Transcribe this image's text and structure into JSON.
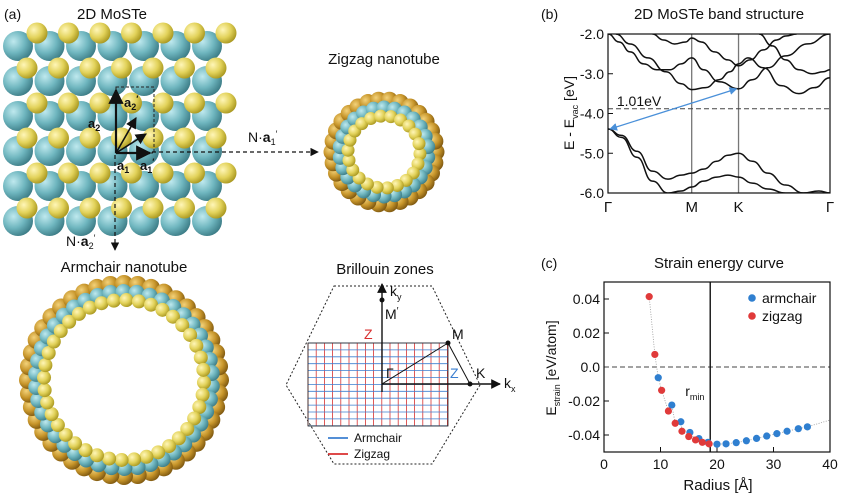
{
  "panels": {
    "a": {
      "label": "(a)",
      "sheet_title": "2D MoSTe",
      "zigzag_title": "Zigzag nanotube",
      "armchair_title": "Armchair nanotube",
      "vec_a1": "a",
      "vec_a1_sub": "1",
      "vec_a2": "a",
      "vec_a2_sub": "2",
      "vec_a1p": "a",
      "vec_a1p_sub": "1",
      "vec_a2p": "a",
      "vec_a2p_sub": "2",
      "prime": "′",
      "n_a1_prefix": "N·",
      "n_a1_vec": "a",
      "n_a1_sub": "1",
      "n_a2_prefix": "N·",
      "n_a2_vec": "a",
      "n_a2_sub": "2"
    },
    "bz": {
      "title": "Brillouin zones",
      "ky": "k",
      "ky_sub": "y",
      "kx": "k",
      "kx_sub": "x",
      "point_M_top": "M",
      "point_M_prime": "′",
      "point_M": "M",
      "point_Z": "Z",
      "point_Gamma": "Γ",
      "point_Z2": "Z",
      "point_K": "K",
      "legend_armchair": "Armchair",
      "legend_zigzag": "Zigzag",
      "colors": {
        "armchair": "#3b7fd1",
        "zigzag": "#d93030"
      }
    },
    "b": {
      "label": "(b)"
    },
    "c": {
      "label": "(c)"
    }
  },
  "chart_data": [
    {
      "type": "line",
      "title": "2D MoSTe band structure",
      "ylabel_main": "E - E",
      "ylabel_sub": "vac",
      "ylabel_unit": " [eV]",
      "ylim": [
        -6.0,
        -2.0
      ],
      "yticks": [
        -6.0,
        -5.0,
        -4.0,
        -3.0,
        -2.0
      ],
      "ytick_labels": [
        "-6.0",
        "-5.0",
        "-4.0",
        "-3.0",
        "-2.0"
      ],
      "kpath": [
        {
          "label": "Γ",
          "pos": 0.0
        },
        {
          "label": "M",
          "pos": 0.377
        },
        {
          "label": "K",
          "pos": 0.588
        },
        {
          "label": "Γ",
          "pos": 1.0
        }
      ],
      "fermi_level": -3.88,
      "gap_annotation": {
        "text": "1.01eV",
        "from": [
          0.0,
          -4.39
        ],
        "to": [
          0.588,
          -3.38
        ],
        "color": "#4a90d9"
      },
      "bands": [
        {
          "x": [
            0.0,
            0.06,
            0.13,
            0.2,
            0.27,
            0.33,
            0.377,
            0.43,
            0.49,
            0.54,
            0.588,
            0.65,
            0.72,
            0.8,
            0.88,
            0.95,
            1.0
          ],
          "y": [
            -4.39,
            -4.55,
            -4.95,
            -5.45,
            -5.65,
            -5.55,
            -5.5,
            -5.4,
            -5.2,
            -5.05,
            -5.0,
            -5.2,
            -5.5,
            -5.8,
            -6.0,
            -6.0,
            -6.0
          ]
        },
        {
          "x": [
            0.0,
            0.06,
            0.13,
            0.2,
            0.27,
            0.33,
            0.377,
            0.43,
            0.49,
            0.54,
            0.588,
            0.65,
            0.72,
            0.8,
            0.88,
            0.95,
            1.0
          ],
          "y": [
            -4.39,
            -4.6,
            -5.1,
            -5.7,
            -6.0,
            -5.95,
            -5.85,
            -5.7,
            -5.6,
            -5.55,
            -5.6,
            -5.75,
            -5.9,
            -6.0,
            -6.0,
            -5.95,
            -6.0
          ]
        },
        {
          "x": [
            0.0,
            0.05,
            0.1,
            0.16,
            0.22,
            0.28,
            0.33,
            0.377,
            0.43,
            0.5,
            0.588,
            0.65,
            0.72,
            0.8,
            0.9,
            1.0
          ],
          "y": [
            -2.0,
            -2.2,
            -2.45,
            -2.75,
            -2.9,
            -2.9,
            -2.75,
            -2.6,
            -2.9,
            -3.2,
            -3.38,
            -3.15,
            -2.85,
            -2.55,
            -2.25,
            -2.0
          ]
        },
        {
          "x": [
            0.035,
            0.1,
            0.18,
            0.26,
            0.33,
            0.377,
            0.44,
            0.5,
            0.55,
            0.588,
            0.63,
            0.7,
            0.78,
            0.86,
            0.93,
            1.0
          ],
          "y": [
            -2.0,
            -2.25,
            -2.6,
            -2.95,
            -3.25,
            -3.4,
            -3.35,
            -3.15,
            -2.95,
            -2.75,
            -2.6,
            -2.85,
            -3.3,
            -3.5,
            -3.35,
            -3.1
          ]
        },
        {
          "x": [
            0.2,
            0.25,
            0.3,
            0.35,
            0.377,
            0.42,
            0.48,
            0.54,
            0.588,
            0.64,
            0.7,
            0.76,
            0.8,
            0.85
          ],
          "y": [
            -2.0,
            -2.15,
            -2.25,
            -2.2,
            -2.1,
            -2.2,
            -2.45,
            -2.65,
            -2.8,
            -2.65,
            -2.4,
            -2.15,
            -2.05,
            -2.0
          ]
        },
        {
          "x": [
            0.68,
            0.74,
            0.8,
            0.86,
            0.92,
            0.97,
            1.0
          ],
          "y": [
            -2.0,
            -2.3,
            -2.65,
            -2.9,
            -3.0,
            -2.95,
            -2.9
          ]
        }
      ]
    },
    {
      "type": "scatter",
      "title": "Strain energy curve",
      "xlabel": "Radius [Å]",
      "ylabel_main": "E",
      "ylabel_sub": "strain",
      "ylabel_unit": " [eV/atom]",
      "xlim": [
        0,
        40
      ],
      "ylim": [
        -0.05,
        0.05
      ],
      "xticks": [
        0,
        10,
        20,
        30,
        40
      ],
      "xtick_labels": [
        "0",
        "10",
        "20",
        "30",
        "40"
      ],
      "yticks": [
        -0.04,
        -0.02,
        0.0,
        0.02,
        0.04
      ],
      "ytick_labels": [
        "-0.04",
        "-0.02",
        "0.0",
        "0.02",
        "0.04"
      ],
      "r_min": 18.8,
      "r_min_label_main": "r",
      "r_min_label_sub": "min",
      "legend_placement": "top-right",
      "series": [
        {
          "name": "armchair",
          "color": "#2f7fd0",
          "x": [
            9.6,
            12.0,
            13.6,
            15.2,
            16.8,
            18.4,
            20.0,
            21.6,
            23.4,
            25.2,
            27.0,
            28.8,
            30.6,
            32.4,
            34.4,
            36.0
          ],
          "y": [
            -0.0063,
            -0.0224,
            -0.0322,
            -0.0385,
            -0.0421,
            -0.0443,
            -0.0454,
            -0.0452,
            -0.0445,
            -0.0434,
            -0.042,
            -0.0406,
            -0.0392,
            -0.0378,
            -0.0363,
            -0.0352
          ]
        },
        {
          "name": "zigzag",
          "color": "#e03a3a",
          "x": [
            8.0,
            9.0,
            10.2,
            11.4,
            12.6,
            13.8,
            15.0,
            16.2,
            17.4,
            18.6
          ],
          "y": [
            0.0414,
            0.0074,
            -0.0137,
            -0.0259,
            -0.0331,
            -0.0378,
            -0.0409,
            -0.0429,
            -0.0443,
            -0.0452
          ]
        }
      ]
    }
  ]
}
